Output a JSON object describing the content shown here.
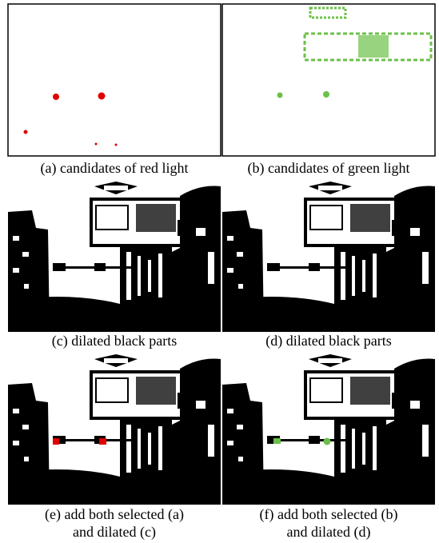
{
  "panels": [
    {
      "caption_lines": [
        "(a) candidates of red light"
      ]
    },
    {
      "caption_lines": [
        "(b) candidates of green light"
      ]
    },
    {
      "caption_lines": [
        "(c) dilated black parts"
      ]
    },
    {
      "caption_lines": [
        "(d) dilated black parts"
      ]
    },
    {
      "caption_lines": [
        "(e) add both selected (a)",
        "and dilated (c)"
      ]
    },
    {
      "caption_lines": [
        "(f) add both selected (b)",
        "and dilated (d)"
      ]
    }
  ]
}
